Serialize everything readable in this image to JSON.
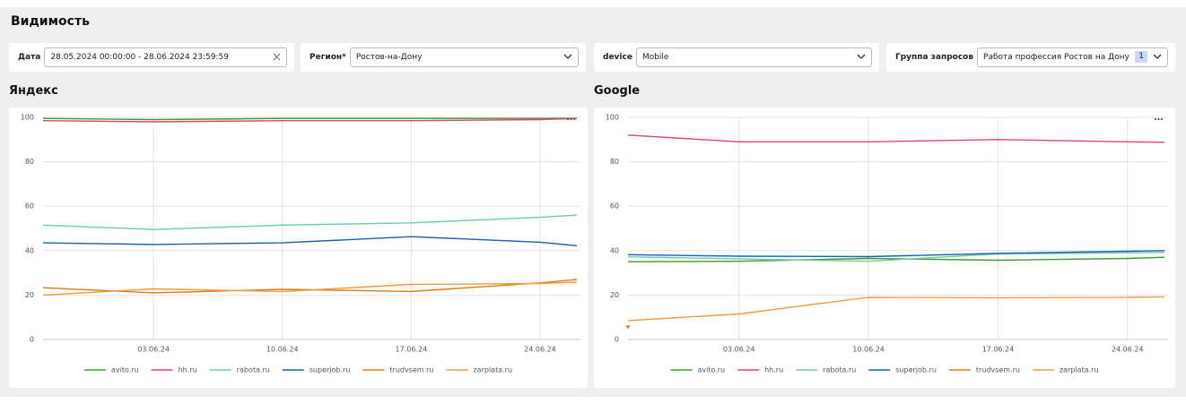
{
  "header": {
    "title": "Видимость"
  },
  "filters": [
    {
      "label": "Дата",
      "value": "28.05.2024 00:00:00 - 28.06.2024 23:59:59"
    },
    {
      "label": "Регион*",
      "value": "Ростов-на-Дону"
    },
    {
      "label": "device",
      "value": "Mobile"
    },
    {
      "label": "Группа запросов",
      "value": "Работа профессия Ростов на Дону",
      "badge": 1
    }
  ],
  "chart_data": [
    {
      "type": "line",
      "title": "Яндекс",
      "x": [
        "28.05.24",
        "03.06.24",
        "10.06.24",
        "17.06.24",
        "24.06.24",
        "26.06.24"
      ],
      "xlim": [
        "28.05.24",
        "26.06.24"
      ],
      "xticks": [
        "03.06.24",
        "10.06.24",
        "17.06.24",
        "24.06.24"
      ],
      "ylim": [
        0,
        100
      ],
      "yticks": [
        0,
        20,
        40,
        60,
        80,
        100
      ],
      "grid": true,
      "legend": "bottom",
      "series": [
        {
          "name": "avito.ru",
          "color": "#3d9b2f",
          "values": [
            99.5,
            99,
            99.5,
            99.5,
            99.5,
            99.5
          ]
        },
        {
          "name": "hh.ru",
          "color": "#e8406b",
          "values": [
            98.5,
            98,
            98.5,
            98.5,
            99,
            99.5
          ]
        },
        {
          "name": "rabota.ru",
          "color": "#6fcbb3",
          "values": [
            51.5,
            49.5,
            51.5,
            52.5,
            55,
            56
          ]
        },
        {
          "name": "superjob.ru",
          "color": "#1f5fa8",
          "values": [
            43.5,
            42.8,
            43.5,
            46.3,
            43.8,
            42.2
          ]
        },
        {
          "name": "trudvsem.ru",
          "color": "#e07b12",
          "values": [
            23.3,
            21,
            22.6,
            21.6,
            25.5,
            27
          ]
        },
        {
          "name": "zarplata.ru",
          "color": "#f59a3c",
          "values": [
            20,
            22.8,
            21.6,
            24.8,
            25.2,
            25.8
          ]
        }
      ]
    },
    {
      "type": "line",
      "title": "Google",
      "x": [
        "28.05.24",
        "03.06.24",
        "10.06.24",
        "17.06.24",
        "24.06.24",
        "26.06.24"
      ],
      "xlim": [
        "28.05.24",
        "26.06.24"
      ],
      "xticks": [
        "03.06.24",
        "10.06.24",
        "17.06.24",
        "24.06.24"
      ],
      "ylim": [
        0,
        100
      ],
      "yticks": [
        0,
        20,
        40,
        60,
        80,
        100
      ],
      "grid": true,
      "legend": "bottom",
      "series": [
        {
          "name": "avito.ru",
          "color": "#3d9b2f",
          "values": [
            35,
            35.2,
            36.5,
            35.7,
            36.5,
            37
          ]
        },
        {
          "name": "hh.ru",
          "color": "#e8406b",
          "values": [
            92,
            89,
            89,
            90,
            89,
            88.8
          ]
        },
        {
          "name": "rabota.ru",
          "color": "#6fcbb3",
          "values": [
            37.2,
            36.3,
            35.2,
            38.5,
            39,
            39.2
          ]
        },
        {
          "name": "superjob.ru",
          "color": "#1f5fa8",
          "values": [
            38.2,
            37.5,
            37.3,
            38.8,
            39.7,
            40
          ]
        },
        {
          "name": "trudvsem.ru",
          "color": "#e07b12",
          "values": [
            5.5,
            null,
            null,
            null,
            null,
            null
          ]
        },
        {
          "name": "zarplata.ru",
          "color": "#f59a3c",
          "values": [
            8.5,
            11.5,
            19,
            18.8,
            19,
            19.2
          ]
        }
      ]
    }
  ]
}
